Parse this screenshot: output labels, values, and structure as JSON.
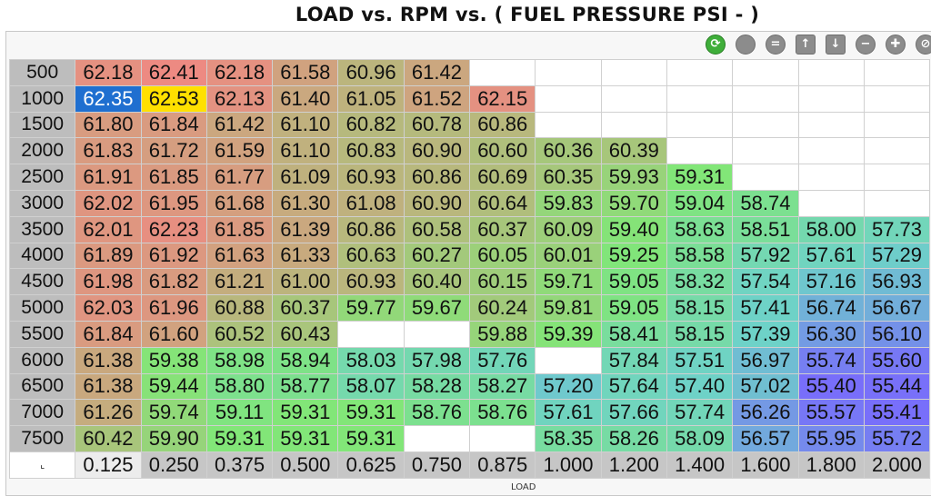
{
  "window": {
    "title": "LOAD vs. RPM vs. ( FUEL PRESSURE PSI -   )"
  },
  "axes": {
    "x_label": "LOAD",
    "y_label": "",
    "corner_symbol": "⌞"
  },
  "toolbar": [
    {
      "name": "refresh-icon",
      "glyph": "⟳",
      "color": "#3fae3a"
    },
    {
      "name": "disabled-circle-icon",
      "glyph": "",
      "color": "#8c8c8c"
    },
    {
      "name": "equals-icon",
      "glyph": "=",
      "color": "#8c8c8c"
    },
    {
      "name": "arrow-up-icon",
      "glyph": "↑",
      "color": "#8c8c8c"
    },
    {
      "name": "arrow-down-icon",
      "glyph": "↓",
      "color": "#8c8c8c"
    },
    {
      "name": "minus-icon",
      "glyph": "−",
      "color": "#8c8c8c"
    },
    {
      "name": "interpolate-icon",
      "glyph": "✚",
      "color": "#8c8c8c"
    },
    {
      "name": "cancel-icon",
      "glyph": "⊘",
      "color": "#8c8c8c"
    }
  ],
  "columns": [
    "0.125",
    "0.250",
    "0.375",
    "0.500",
    "0.625",
    "0.750",
    "0.875",
    "1.000",
    "1.200",
    "1.400",
    "1.600",
    "1.800",
    "2.000"
  ],
  "rows": [
    {
      "rpm": "500",
      "cells": [
        "62.18",
        "62.41",
        "62.18",
        "61.58",
        "60.96",
        "61.42",
        "",
        "",
        "",
        "",
        "",
        "",
        ""
      ]
    },
    {
      "rpm": "1000",
      "cells": [
        "62.35",
        "62.53",
        "62.13",
        "61.40",
        "61.05",
        "61.52",
        "62.15",
        "",
        "",
        "",
        "",
        "",
        ""
      ]
    },
    {
      "rpm": "1500",
      "cells": [
        "61.80",
        "61.84",
        "61.42",
        "61.10",
        "60.82",
        "60.78",
        "60.86",
        "",
        "",
        "",
        "",
        "",
        ""
      ]
    },
    {
      "rpm": "2000",
      "cells": [
        "61.83",
        "61.72",
        "61.59",
        "61.10",
        "60.83",
        "60.90",
        "60.60",
        "60.36",
        "60.39",
        "",
        "",
        "",
        ""
      ]
    },
    {
      "rpm": "2500",
      "cells": [
        "61.91",
        "61.85",
        "61.77",
        "61.09",
        "60.93",
        "60.86",
        "60.69",
        "60.35",
        "59.93",
        "59.31",
        "",
        "",
        ""
      ]
    },
    {
      "rpm": "3000",
      "cells": [
        "62.02",
        "61.95",
        "61.68",
        "61.30",
        "61.08",
        "60.90",
        "60.64",
        "59.83",
        "59.70",
        "59.04",
        "58.74",
        "",
        ""
      ]
    },
    {
      "rpm": "3500",
      "cells": [
        "62.01",
        "62.23",
        "61.85",
        "61.39",
        "60.86",
        "60.58",
        "60.37",
        "60.09",
        "59.40",
        "58.63",
        "58.51",
        "58.00",
        "57.73"
      ]
    },
    {
      "rpm": "4000",
      "cells": [
        "61.89",
        "61.92",
        "61.63",
        "61.33",
        "60.63",
        "60.27",
        "60.05",
        "60.01",
        "59.25",
        "58.58",
        "57.92",
        "57.61",
        "57.29"
      ]
    },
    {
      "rpm": "4500",
      "cells": [
        "61.98",
        "61.82",
        "61.21",
        "61.00",
        "60.93",
        "60.40",
        "60.15",
        "59.71",
        "59.05",
        "58.32",
        "57.54",
        "57.16",
        "56.93"
      ]
    },
    {
      "rpm": "5000",
      "cells": [
        "62.03",
        "61.96",
        "60.88",
        "60.37",
        "59.77",
        "59.67",
        "60.24",
        "59.81",
        "59.05",
        "58.15",
        "57.41",
        "56.74",
        "56.67"
      ]
    },
    {
      "rpm": "5500",
      "cells": [
        "61.84",
        "61.60",
        "60.52",
        "60.43",
        "",
        "",
        "59.88",
        "59.39",
        "58.41",
        "58.15",
        "57.39",
        "56.30",
        "56.10"
      ]
    },
    {
      "rpm": "6000",
      "cells": [
        "61.38",
        "59.38",
        "58.98",
        "58.94",
        "58.03",
        "57.98",
        "57.76",
        "",
        "57.84",
        "57.51",
        "56.97",
        "55.74",
        "55.60"
      ]
    },
    {
      "rpm": "6500",
      "cells": [
        "61.38",
        "59.44",
        "58.80",
        "58.77",
        "58.07",
        "58.28",
        "58.27",
        "57.20",
        "57.64",
        "57.40",
        "57.02",
        "55.40",
        "55.44"
      ]
    },
    {
      "rpm": "7000",
      "cells": [
        "61.26",
        "59.74",
        "59.11",
        "59.31",
        "59.31",
        "58.76",
        "58.76",
        "57.61",
        "57.66",
        "57.74",
        "56.26",
        "55.57",
        "55.41"
      ]
    },
    {
      "rpm": "7500",
      "cells": [
        "60.42",
        "59.90",
        "59.31",
        "59.31",
        "59.31",
        "",
        "",
        "58.35",
        "58.26",
        "58.09",
        "56.57",
        "55.95",
        "55.72"
      ]
    }
  ],
  "selection": {
    "selected_cell": "62.35",
    "cursor_cell": "62.53"
  }
}
